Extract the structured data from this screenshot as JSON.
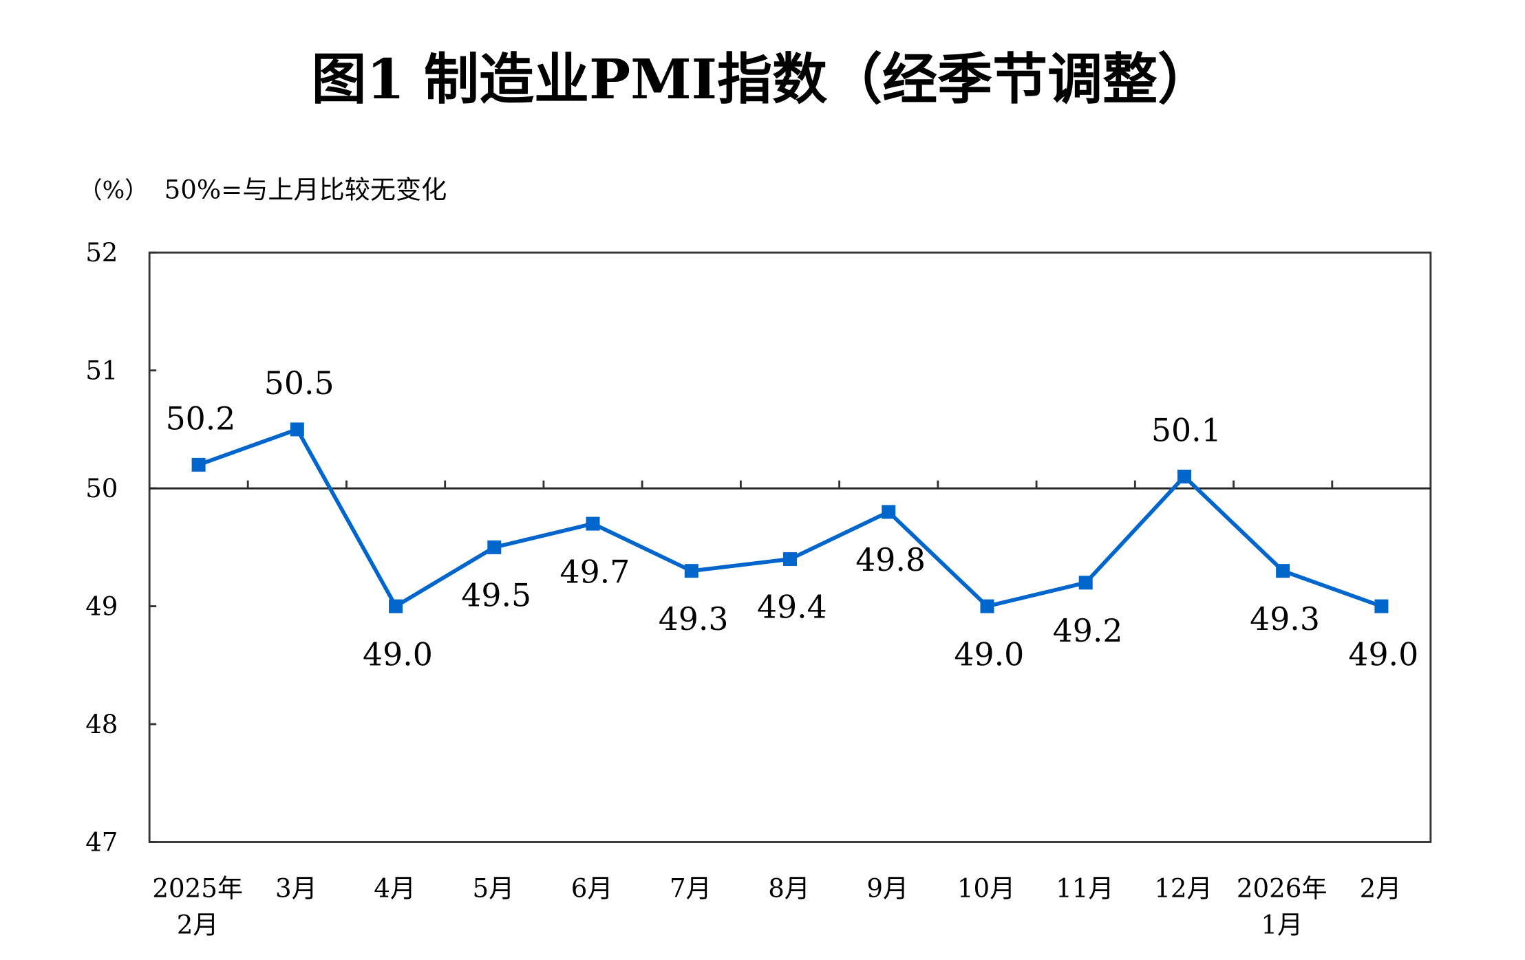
{
  "chart_data": {
    "type": "line",
    "title": "图1  制造业PMI指数（经季节调整）",
    "ylabel": "（%）",
    "note": "50%=与上月比较无变化",
    "categories": [
      [
        "2025年",
        "2月"
      ],
      [
        "3月"
      ],
      [
        "4月"
      ],
      [
        "5月"
      ],
      [
        "6月"
      ],
      [
        "7月"
      ],
      [
        "8月"
      ],
      [
        "9月"
      ],
      [
        "10月"
      ],
      [
        "11月"
      ],
      [
        "12月"
      ],
      [
        "2026年",
        "1月"
      ],
      [
        "2月"
      ]
    ],
    "values": [
      50.2,
      50.5,
      49.0,
      49.5,
      49.7,
      49.3,
      49.4,
      49.8,
      49.0,
      49.2,
      50.1,
      49.3,
      49.0
    ],
    "data_labels": [
      "50.2",
      "50.5",
      "49.0",
      "49.5",
      "49.7",
      "49.3",
      "49.4",
      "49.8",
      "49.0",
      "49.2",
      "50.1",
      "49.3",
      "49.0"
    ],
    "yticks": [
      "47",
      "48",
      "49",
      "50",
      "51",
      "52"
    ],
    "ylim": [
      47,
      52
    ],
    "reference_line": 50,
    "grid": false,
    "color": "#0066cc"
  }
}
